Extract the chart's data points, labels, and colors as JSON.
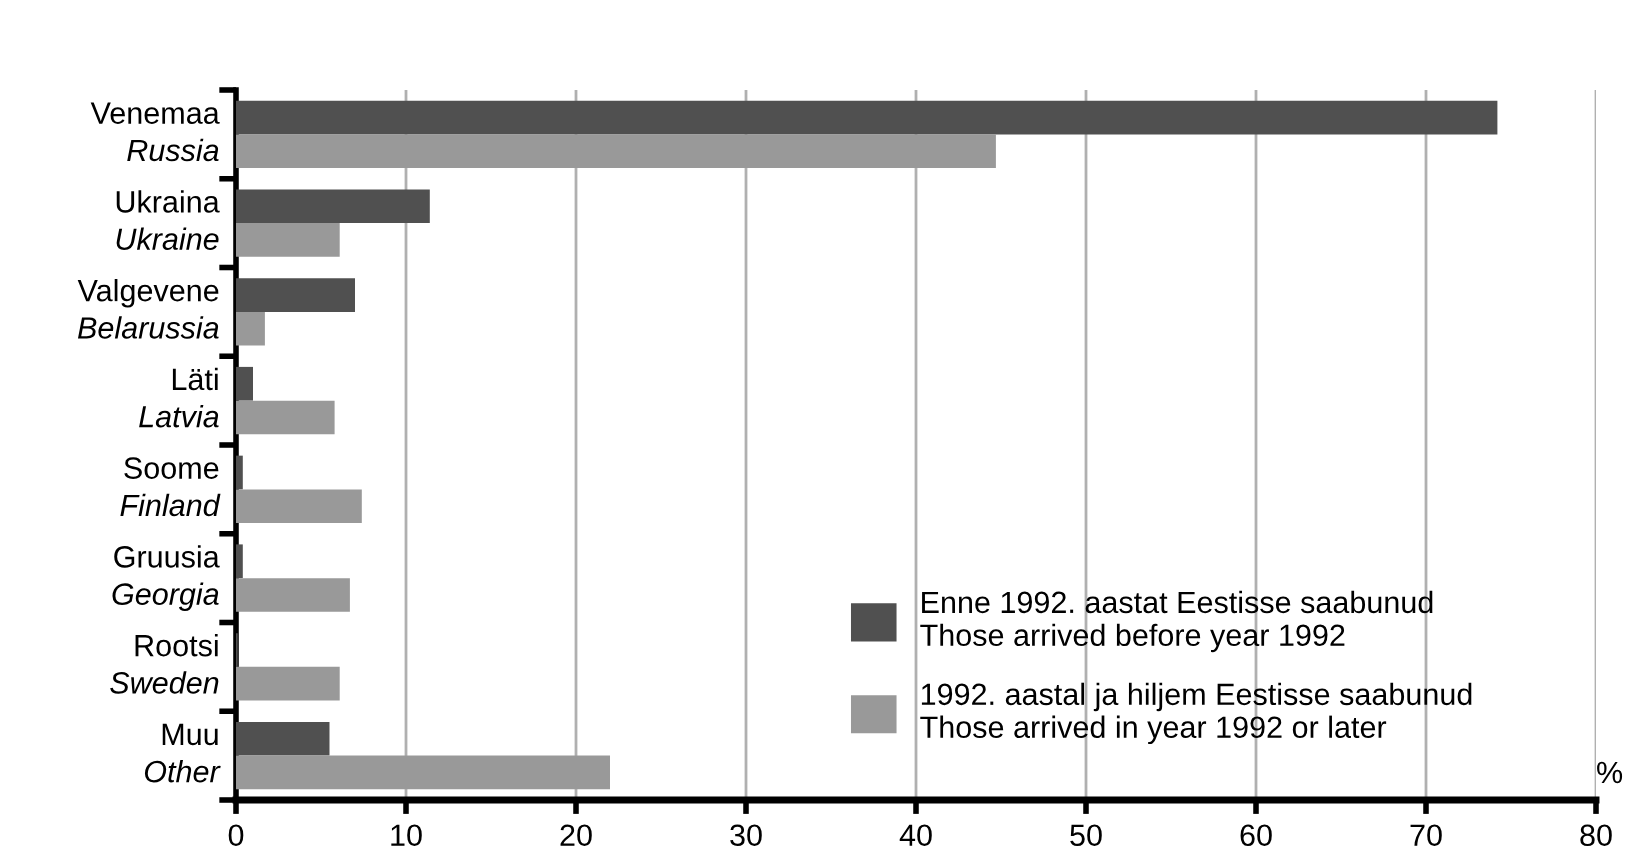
{
  "chart_data": {
    "type": "bar",
    "orientation": "horizontal",
    "xlabel": "%",
    "categories": [
      "Venemaa\nRussia",
      "Ukraina\nUkraine",
      "Valgevene\nBelarussia",
      "Läti\nLatvia",
      "Soome\nFinland",
      "Gruusia\nGeorgia",
      "Rootsi\nSweden",
      "Muu\nOther"
    ],
    "series": [
      {
        "name": "Enne 1992. aastat Eestisse saabunud\nThose arrived before year 1992",
        "color": "#505050",
        "values": [
          74.2,
          11.4,
          7.0,
          1.0,
          0.4,
          0.4,
          0.1,
          5.5
        ]
      },
      {
        "name": "1992. aastal ja hiljem Eestisse saabunud\nThose arrived in year 1992 or later",
        "color": "#999999",
        "values": [
          44.7,
          6.1,
          1.7,
          5.8,
          7.4,
          6.7,
          6.1,
          22.0
        ]
      }
    ],
    "xlim": [
      0,
      80
    ],
    "xticks": [
      0,
      10,
      20,
      30,
      40,
      50,
      60,
      70,
      80
    ],
    "grid": "x",
    "legend": "bottom right"
  }
}
